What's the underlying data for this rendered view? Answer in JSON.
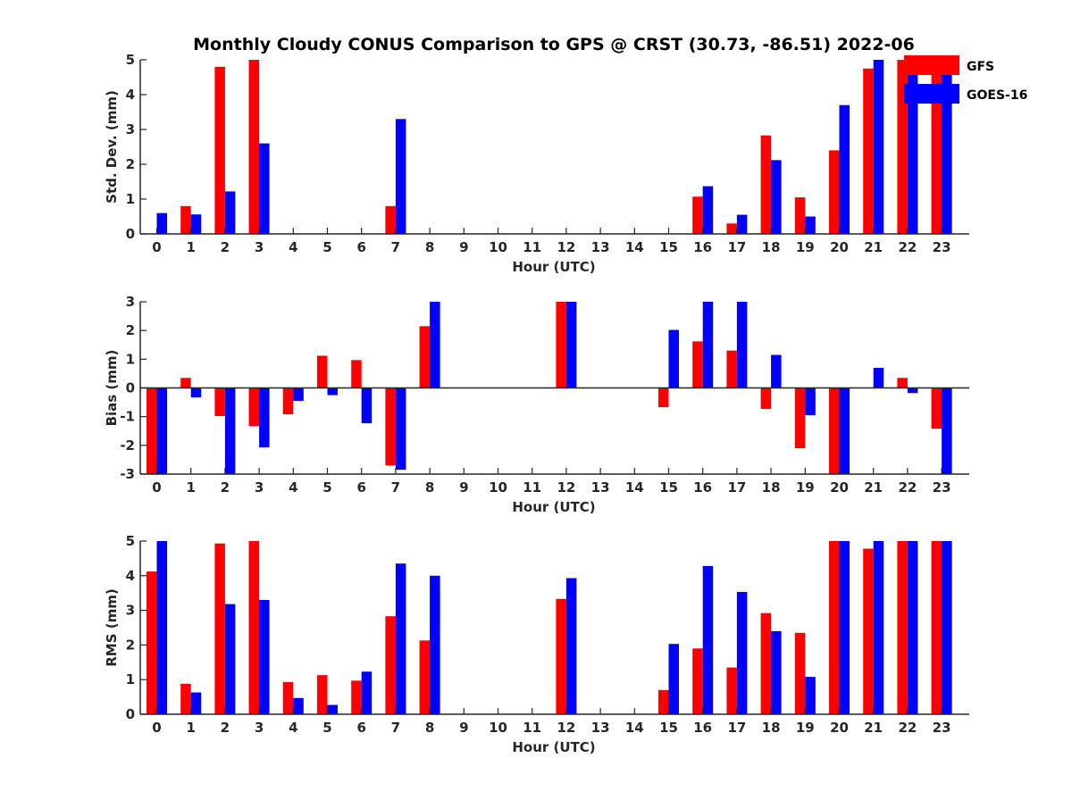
{
  "title": "Monthly Cloudy CONUS Comparison to GPS @ CRST (30.73, -86.51) 2022-06",
  "colors": {
    "GFS": "#ff0000",
    "GOES-16": "#0000ff",
    "axis": "#262626"
  },
  "legend": {
    "placement": "top-right",
    "items": [
      "GFS",
      "GOES-16"
    ]
  },
  "chart_data": [
    {
      "type": "bar",
      "ylabel": "Std. Dev. (mm)",
      "xlabel": "Hour (UTC)",
      "ylim": [
        0,
        5
      ],
      "yticks": [
        "0",
        "1",
        "2",
        "3",
        "4",
        "5"
      ],
      "categories": [
        "0",
        "1",
        "2",
        "3",
        "4",
        "5",
        "6",
        "7",
        "8",
        "9",
        "10",
        "11",
        "12",
        "13",
        "14",
        "15",
        "16",
        "17",
        "18",
        "19",
        "20",
        "21",
        "22",
        "23"
      ],
      "series": [
        {
          "name": "GFS",
          "values": [
            0,
            0.8,
            4.8,
            5.0,
            0,
            0,
            0,
            0.8,
            0,
            0,
            0,
            0,
            0,
            0,
            0,
            0,
            1.07,
            0.3,
            2.83,
            1.05,
            2.4,
            4.75,
            5.0,
            5.0
          ]
        },
        {
          "name": "GOES-16",
          "values": [
            0.6,
            0.56,
            1.22,
            2.6,
            0,
            0,
            0,
            3.3,
            0,
            0,
            0,
            0,
            0,
            0,
            0,
            0,
            1.37,
            0.55,
            2.12,
            0.5,
            3.7,
            5.0,
            5.0,
            5.0
          ]
        }
      ]
    },
    {
      "type": "bar",
      "ylabel": "Bias (mm)",
      "xlabel": "Hour (UTC)",
      "ylim": [
        -3,
        3
      ],
      "yticks": [
        "-3",
        "-2",
        "-1",
        "0",
        "1",
        "2",
        "3"
      ],
      "categories": [
        "0",
        "1",
        "2",
        "3",
        "4",
        "5",
        "6",
        "7",
        "8",
        "9",
        "10",
        "11",
        "12",
        "13",
        "14",
        "15",
        "16",
        "17",
        "18",
        "19",
        "20",
        "21",
        "22",
        "23"
      ],
      "series": [
        {
          "name": "GFS",
          "values": [
            -3.0,
            0.35,
            -0.98,
            -1.33,
            -0.92,
            1.12,
            0.97,
            -2.7,
            2.15,
            0,
            0,
            0,
            3.0,
            0,
            0,
            -0.67,
            1.62,
            1.3,
            -0.73,
            -2.1,
            -3.0,
            0,
            0.35,
            -1.42
          ]
        },
        {
          "name": "GOES-16",
          "values": [
            -3.0,
            -0.33,
            -3.0,
            -2.07,
            -0.45,
            -0.25,
            -1.23,
            -2.85,
            3.0,
            0,
            0,
            0,
            3.0,
            0,
            0,
            2.02,
            3.0,
            3.0,
            1.15,
            -0.95,
            -3.0,
            0.7,
            -0.18,
            -3.0
          ]
        }
      ]
    },
    {
      "type": "bar",
      "ylabel": "RMS (mm)",
      "xlabel": "Hour (UTC)",
      "ylim": [
        0,
        5
      ],
      "yticks": [
        "0",
        "1",
        "2",
        "3",
        "4",
        "5"
      ],
      "categories": [
        "0",
        "1",
        "2",
        "3",
        "4",
        "5",
        "6",
        "7",
        "8",
        "9",
        "10",
        "11",
        "12",
        "13",
        "14",
        "15",
        "16",
        "17",
        "18",
        "19",
        "20",
        "21",
        "22",
        "23"
      ],
      "series": [
        {
          "name": "GFS",
          "values": [
            4.12,
            0.88,
            4.93,
            5.0,
            0.93,
            1.13,
            0.97,
            2.83,
            2.13,
            0,
            0,
            0,
            3.33,
            0,
            0,
            0.7,
            1.9,
            1.35,
            2.92,
            2.35,
            5.0,
            4.78,
            5.0,
            5.0
          ]
        },
        {
          "name": "GOES-16",
          "values": [
            5.0,
            0.63,
            3.18,
            3.3,
            0.47,
            0.27,
            1.23,
            4.35,
            4.0,
            0,
            0,
            0,
            3.93,
            0,
            0,
            2.03,
            4.28,
            3.53,
            2.4,
            1.08,
            5.0,
            5.0,
            5.0,
            5.0
          ]
        }
      ]
    }
  ]
}
